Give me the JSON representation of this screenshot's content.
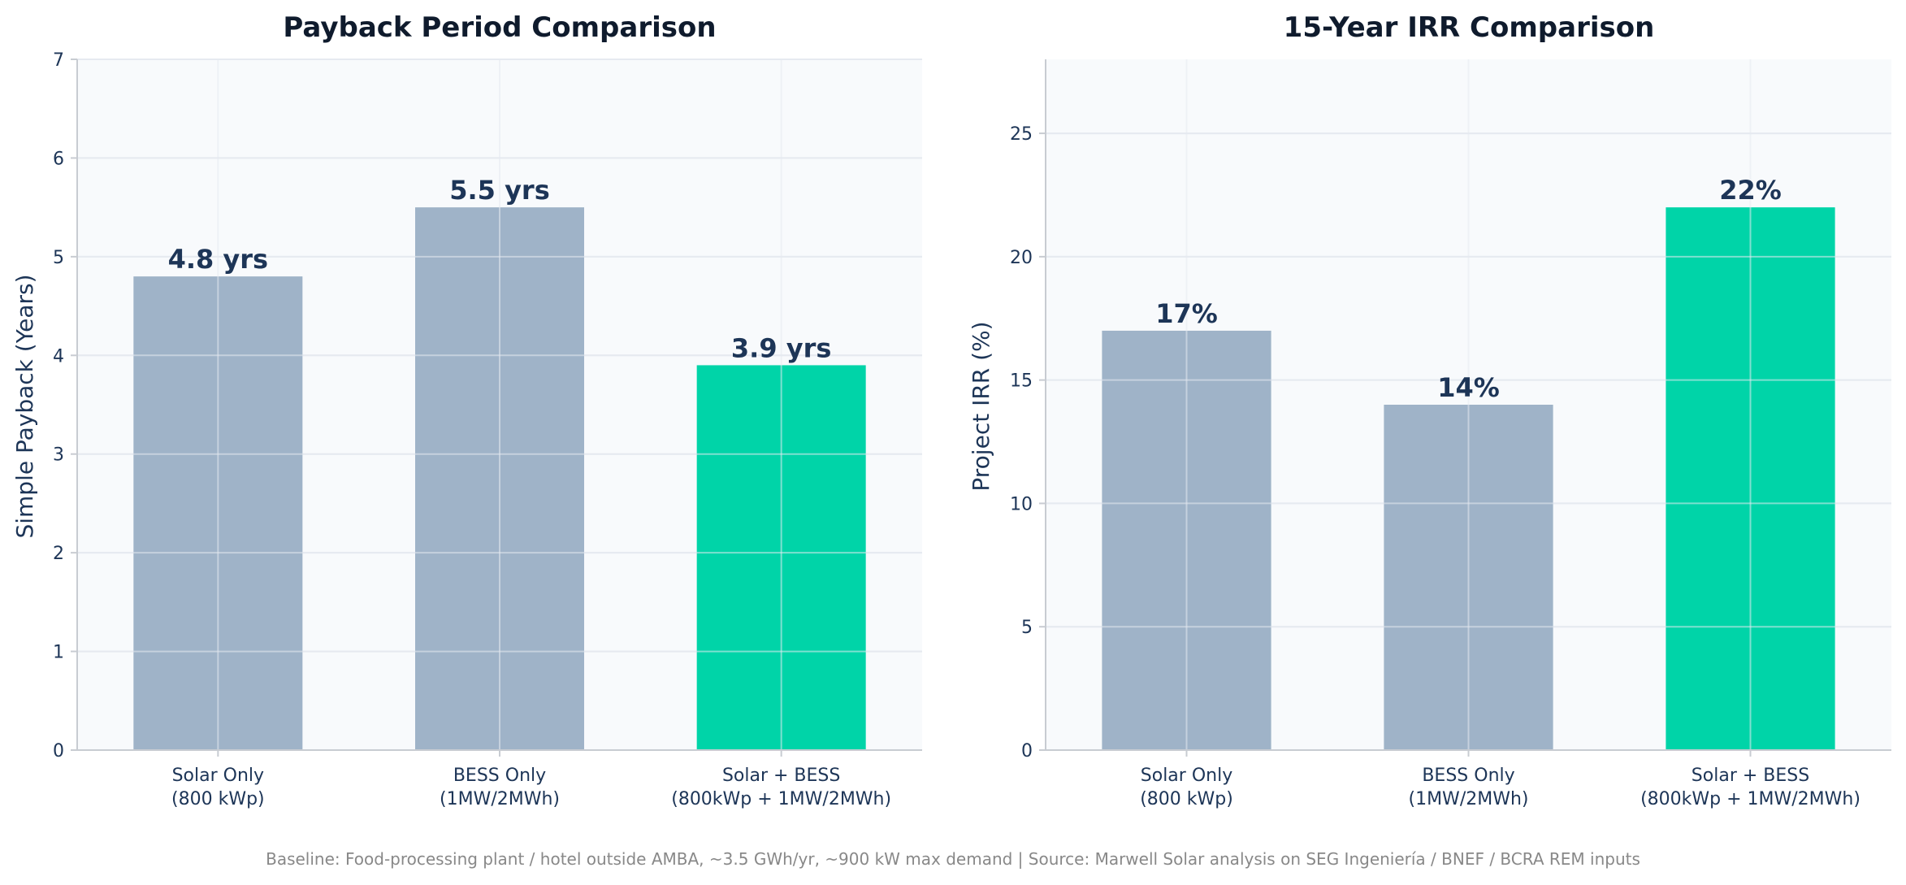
{
  "chart_data": [
    {
      "type": "bar",
      "title": "Payback Period Comparison",
      "ylabel": "Simple Payback (Years)",
      "xlabel": "",
      "categories": [
        [
          "Solar Only",
          "(800 kWp)"
        ],
        [
          "BESS Only",
          "(1MW/2MWh)"
        ],
        [
          "Solar + BESS",
          "(800kWp + 1MW/2MWh)"
        ]
      ],
      "values": [
        4.8,
        5.5,
        3.9
      ],
      "data_labels": [
        "4.8 yrs",
        "5.5 yrs",
        "3.9 yrs"
      ],
      "bar_colors": [
        "#9fb3c8",
        "#9fb3c8",
        "#00d4a8"
      ],
      "ylim": [
        0,
        7
      ],
      "yticks": [
        0,
        1,
        2,
        3,
        4,
        5,
        6,
        7
      ],
      "grid": true
    },
    {
      "type": "bar",
      "title": "15-Year IRR Comparison",
      "ylabel": "Project IRR (%)",
      "xlabel": "",
      "categories": [
        [
          "Solar Only",
          "(800 kWp)"
        ],
        [
          "BESS Only",
          "(1MW/2MWh)"
        ],
        [
          "Solar + BESS",
          "(800kWp + 1MW/2MWh)"
        ]
      ],
      "values": [
        17,
        14,
        22
      ],
      "data_labels": [
        "17%",
        "14%",
        "22%"
      ],
      "bar_colors": [
        "#9fb3c8",
        "#9fb3c8",
        "#00d4a8"
      ],
      "ylim": [
        0,
        28
      ],
      "yticks": [
        0,
        5,
        10,
        15,
        20,
        25
      ],
      "grid": true
    }
  ],
  "footer": "Baseline: Food-processing plant / hotel outside AMBA, ~3.5 GWh/yr, ~900 kW max demand | Source: Marwell Solar analysis on SEG Ingeniería / BNEF / BCRA REM inputs",
  "colors": {
    "plot_background": "#f8fafc",
    "grid": "#e6eaf0",
    "axis": "#c8ccd2",
    "text": "#1d3557"
  }
}
